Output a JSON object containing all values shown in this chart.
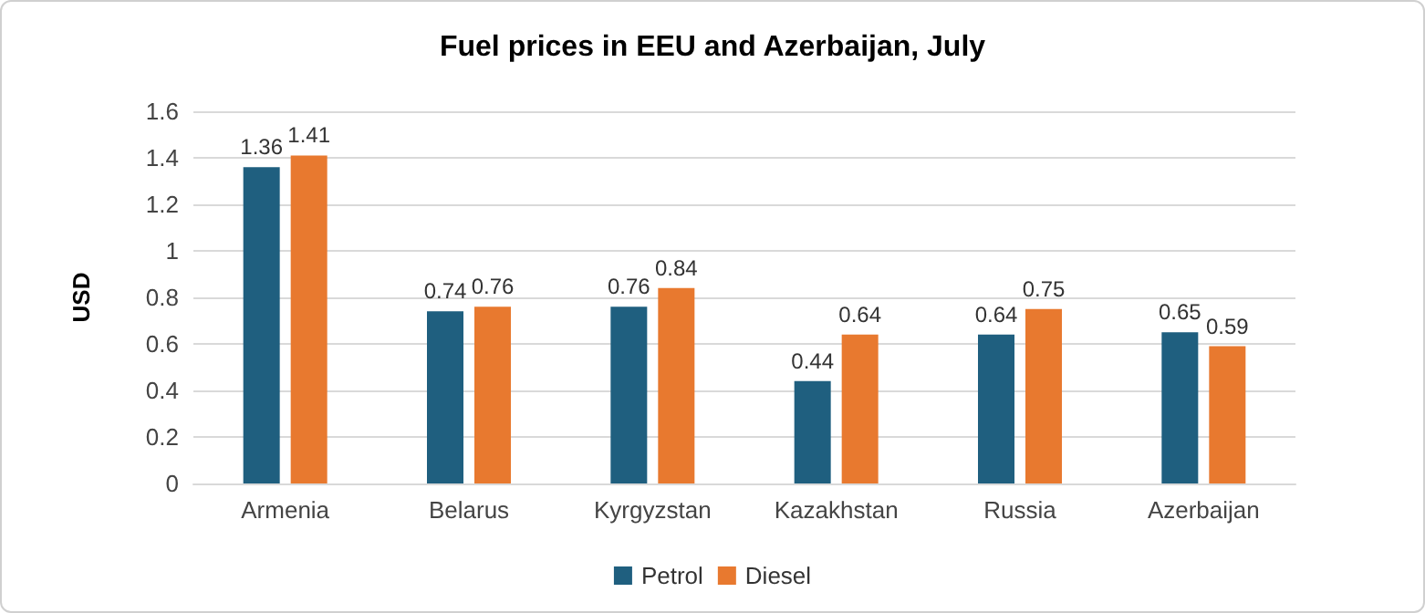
{
  "chart_data": {
    "type": "bar",
    "title": "Fuel prices in EEU and Azerbaijan, July",
    "ylabel": "USD",
    "categories": [
      "Armenia",
      "Belarus",
      "Kyrgyzstan",
      "Kazakhstan",
      "Russia",
      "Azerbaijan"
    ],
    "series": [
      {
        "name": "Petrol",
        "color": "#1f5f7f",
        "values": [
          1.36,
          0.74,
          0.76,
          0.44,
          0.64,
          0.65
        ]
      },
      {
        "name": "Diesel",
        "color": "#e8792f",
        "values": [
          1.41,
          0.76,
          0.84,
          0.64,
          0.75,
          0.59
        ]
      }
    ],
    "ylim": [
      0,
      1.6
    ],
    "yticks": [
      0,
      0.2,
      0.4,
      0.6,
      0.8,
      1,
      1.2,
      1.4,
      1.6
    ],
    "grid": "y",
    "legend": "bottom",
    "data_labels": true
  }
}
